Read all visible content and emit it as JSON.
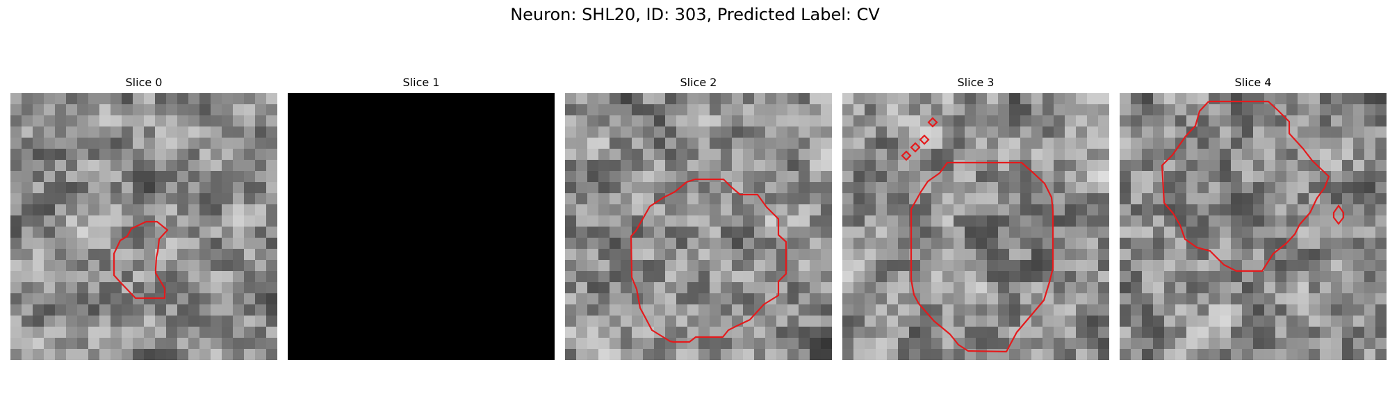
{
  "figure": {
    "title": "Neuron: SHL20, ID: 303, Predicted Label: CV",
    "contour_color": "#e41a1c",
    "colormap": "gray",
    "grid_size": 24,
    "panels": [
      {
        "title": "Slice 0",
        "blank": false,
        "seed": 11
      },
      {
        "title": "Slice 1",
        "blank": true,
        "seed": 0
      },
      {
        "title": "Slice 2",
        "blank": false,
        "seed": 27
      },
      {
        "title": "Slice 3",
        "blank": false,
        "seed": 43
      },
      {
        "title": "Slice 4",
        "blank": false,
        "seed": 59
      }
    ]
  }
}
